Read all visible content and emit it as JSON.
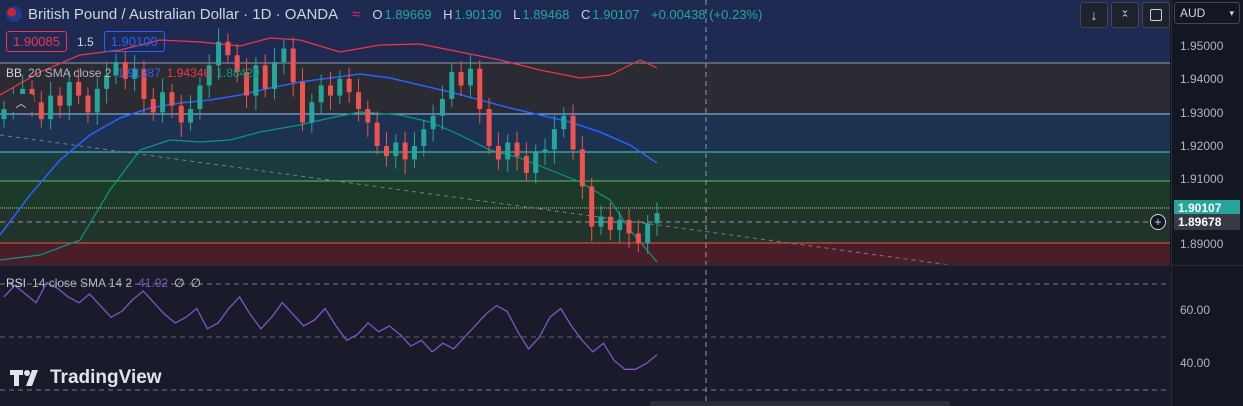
{
  "header": {
    "symbol_title": "British Pound / Australian Dollar · 1D · OANDA",
    "ohlc": {
      "o_label": "O",
      "o": "1.89669",
      "h_label": "H",
      "h": "1.90130",
      "l_label": "L",
      "l": "1.89468",
      "c_label": "C",
      "c": "1.90107",
      "change": "+0.00438 (+0.23%)"
    },
    "sell_price": "1.90085",
    "spread": "1.5",
    "buy_price": "1.90100"
  },
  "indicators": {
    "bb_name": "BB",
    "bb_params": "20 SMA close 2",
    "bb_basis": "1.91387",
    "bb_upper": "1.94346",
    "bb_lower": "1.88429",
    "rsi_name": "RSI",
    "rsi_params": "14 close SMA 14 2",
    "rsi_value": "41.92",
    "rsi_extra1": "∅",
    "rsi_extra2": "∅"
  },
  "toolbar": {
    "currency": "AUD",
    "currency_dropdown_icon": "chevron-down-icon",
    "btn1_icon": "arrow-down-icon",
    "btn2_icon": "collapse-icon",
    "btn3_icon": "fullscreen-icon"
  },
  "price_axis": {
    "ticks": [
      "1.95000",
      "1.94000",
      "1.93000",
      "1.92000",
      "1.91000",
      "1.89000"
    ],
    "current_price": "1.90107",
    "crosshair_price": "1.89678"
  },
  "rsi_axis": {
    "ticks": [
      "60.00",
      "40.00"
    ]
  },
  "brand": {
    "logo_text": "TradingView",
    "logo_icon": "tradingview-logo-icon"
  },
  "colors": {
    "up": "#26a69a",
    "down": "#ef5350",
    "bb_basis": "#2962ff",
    "bb_upper": "#f23645",
    "bb_lower": "#089981",
    "rsi": "#7e57c2",
    "current_price_bg": "#26a69a",
    "crosshair_bg": "#363a45"
  },
  "chart_data": {
    "type": "candlestick",
    "y_range": [
      1.8865,
      1.957
    ],
    "closes": [
      1.932,
      1.935,
      1.938,
      1.934,
      1.929,
      1.936,
      1.933,
      1.94,
      1.936,
      1.931,
      1.938,
      1.942,
      1.946,
      1.941,
      1.944,
      1.935,
      1.931,
      1.937,
      1.933,
      1.928,
      1.932,
      1.939,
      1.945,
      1.952,
      1.948,
      1.943,
      1.936,
      1.945,
      1.938,
      1.946,
      1.95,
      1.94,
      1.928,
      1.934,
      1.939,
      1.936,
      1.941,
      1.937,
      1.932,
      1.928,
      1.921,
      1.918,
      1.922,
      1.917,
      1.921,
      1.926,
      1.93,
      1.935,
      1.943,
      1.939,
      1.944,
      1.932,
      1.921,
      1.917,
      1.922,
      1.918,
      1.913,
      1.919,
      1.92,
      1.926,
      1.93,
      1.92,
      1.909,
      1.897,
      1.9,
      1.896,
      1.899,
      1.895,
      1.892,
      1.898,
      1.901
    ],
    "rsi_values": [
      62,
      66,
      63,
      60,
      67,
      65,
      62,
      60,
      63,
      59,
      55,
      57,
      61,
      64,
      60,
      56,
      53,
      55,
      58,
      51,
      53,
      58,
      62,
      56,
      51,
      55,
      60,
      56,
      52,
      54,
      58,
      52,
      47,
      49,
      53,
      50,
      52,
      49,
      45,
      47,
      43,
      46,
      44,
      48,
      52,
      56,
      59,
      57,
      50,
      44,
      48,
      55,
      58,
      52,
      47,
      43,
      46,
      40,
      37,
      37,
      39,
      42
    ],
    "rsi_range": [
      25,
      72
    ]
  }
}
